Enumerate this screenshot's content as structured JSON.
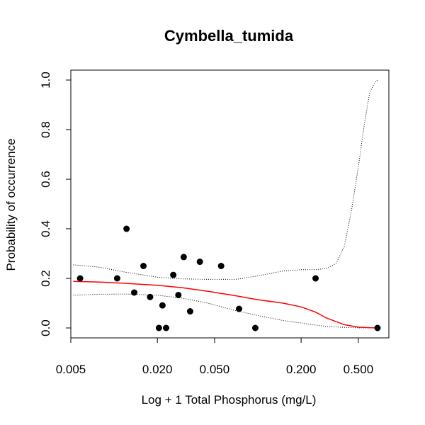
{
  "chart_data": {
    "type": "scatter",
    "title": "Cymbella_tumida",
    "xlabel": "Log + 1 Total Phosphorus (mg/L)",
    "ylabel": "Probability of occurrence",
    "x_scale": "log",
    "xlim": [
      0.005,
      0.8
    ],
    "ylim": [
      0,
      1
    ],
    "x_ticks": [
      0.005,
      0.02,
      0.05,
      0.2,
      0.5
    ],
    "x_tick_labels": [
      "0.005",
      "0.020",
      "0.050",
      "0.200",
      "0.500"
    ],
    "y_ticks": [
      0,
      0.2,
      0.4,
      0.6,
      0.8,
      1.0
    ],
    "y_tick_labels": [
      "0.0",
      "0.2",
      "0.4",
      "0.6",
      "0.8",
      "1.0"
    ],
    "points": [
      {
        "x": 0.0058,
        "y": 0.2
      },
      {
        "x": 0.0105,
        "y": 0.2
      },
      {
        "x": 0.0122,
        "y": 0.4
      },
      {
        "x": 0.0138,
        "y": 0.143
      },
      {
        "x": 0.016,
        "y": 0.25
      },
      {
        "x": 0.0178,
        "y": 0.125
      },
      {
        "x": 0.0205,
        "y": 0.0
      },
      {
        "x": 0.0217,
        "y": 0.091
      },
      {
        "x": 0.023,
        "y": 0.0
      },
      {
        "x": 0.0258,
        "y": 0.214
      },
      {
        "x": 0.028,
        "y": 0.133
      },
      {
        "x": 0.0305,
        "y": 0.286
      },
      {
        "x": 0.0338,
        "y": 0.067
      },
      {
        "x": 0.0395,
        "y": 0.267
      },
      {
        "x": 0.0555,
        "y": 0.25
      },
      {
        "x": 0.074,
        "y": 0.077
      },
      {
        "x": 0.096,
        "y": 0.0
      },
      {
        "x": 0.252,
        "y": 0.2
      },
      {
        "x": 0.68,
        "y": 0.0
      }
    ],
    "fit": {
      "color": "#ff0000",
      "x": [
        0.0052,
        0.008,
        0.012,
        0.02,
        0.03,
        0.045,
        0.07,
        0.1,
        0.15,
        0.2,
        0.25,
        0.3,
        0.4,
        0.5,
        0.6,
        0.68
      ],
      "y": [
        0.188,
        0.185,
        0.18,
        0.172,
        0.162,
        0.148,
        0.13,
        0.114,
        0.1,
        0.085,
        0.065,
        0.04,
        0.013,
        0.003,
        0.001,
        0.0
      ]
    },
    "upper_band": {
      "style": "dotted",
      "x": [
        0.0052,
        0.008,
        0.012,
        0.02,
        0.03,
        0.045,
        0.07,
        0.1,
        0.15,
        0.2,
        0.25,
        0.3,
        0.35,
        0.4,
        0.45,
        0.5,
        0.55,
        0.6,
        0.65,
        0.68
      ],
      "y": [
        0.255,
        0.245,
        0.225,
        0.205,
        0.198,
        0.196,
        0.196,
        0.21,
        0.23,
        0.235,
        0.235,
        0.24,
        0.26,
        0.33,
        0.48,
        0.65,
        0.82,
        0.95,
        0.99,
        1.0
      ]
    },
    "lower_band": {
      "style": "dotted",
      "x": [
        0.0052,
        0.008,
        0.012,
        0.02,
        0.03,
        0.045,
        0.07,
        0.1,
        0.15,
        0.2,
        0.25,
        0.3,
        0.4,
        0.5,
        0.6,
        0.68
      ],
      "y": [
        0.132,
        0.136,
        0.137,
        0.132,
        0.12,
        0.1,
        0.07,
        0.05,
        0.03,
        0.02,
        0.012,
        0.006,
        0.002,
        0.0005,
        0.0001,
        0.0
      ]
    },
    "grid": false,
    "legend": "none"
  }
}
